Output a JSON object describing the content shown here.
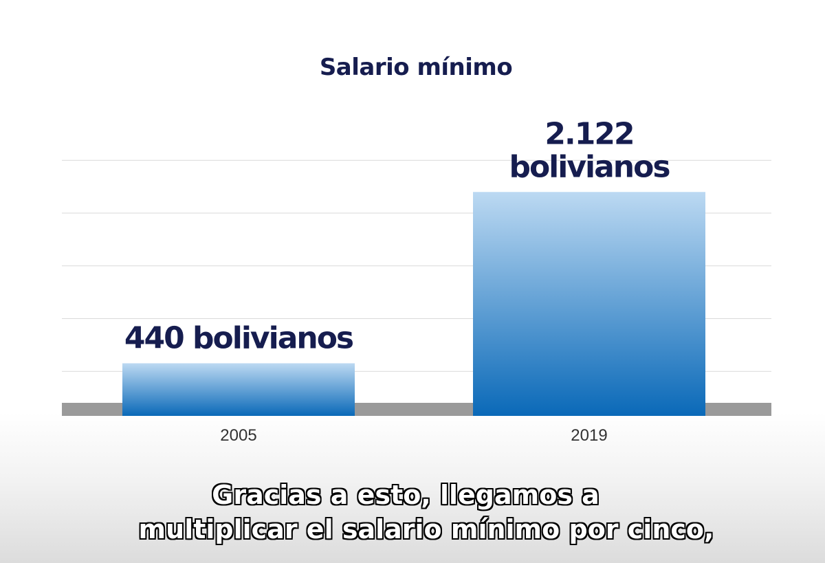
{
  "chart_data": {
    "type": "bar",
    "title": "Salario mínimo",
    "categories": [
      "2005",
      "2019"
    ],
    "values": [
      440,
      2122
    ],
    "value_labels": [
      [
        "440 bolivianos"
      ],
      [
        "2.122",
        "bolivianos"
      ]
    ],
    "unit": "bolivianos",
    "xlabel": "",
    "ylabel": "",
    "ylim": [
      0,
      2500
    ],
    "grid": true,
    "legend": "none",
    "colors": {
      "bar_top": "#bcd9f2",
      "bar_bottom": "#0a69b8",
      "label": "#161d4f",
      "baseline": "#9a9a9a",
      "grid": "#d9d9d9"
    }
  },
  "subtitles": {
    "line1": "Gracias a esto, llegamos a",
    "line2": "multiplicar el salario mínimo por cinco,"
  }
}
